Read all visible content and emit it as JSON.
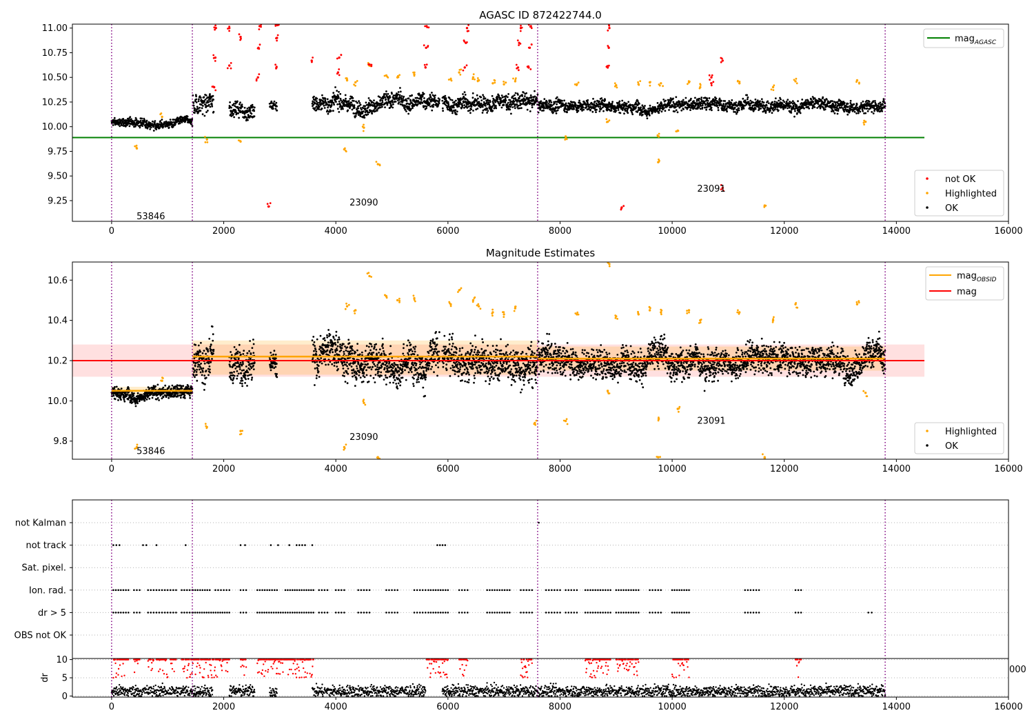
{
  "chart_data": [
    {
      "type": "scatter",
      "title": "AGASC ID 872422744.0",
      "xlabel": "",
      "ylabel": "",
      "xlim": [
        -700,
        16000
      ],
      "ylim": [
        9.04,
        11.04
      ],
      "x_ticks": [
        "0",
        "2000",
        "4000",
        "6000",
        "8000",
        "10000",
        "12000",
        "14000",
        "16000"
      ],
      "y_ticks": [
        "9.25",
        "9.50",
        "9.75",
        "10.00",
        "10.25",
        "10.50",
        "10.75",
        "11.00"
      ],
      "obsid_boundaries": [
        0,
        1440,
        7600,
        13800
      ],
      "obsid_labels": [
        {
          "text": "53846",
          "x": 700,
          "y": 9.09
        },
        {
          "text": "23090",
          "x": 4500,
          "y": 9.23
        },
        {
          "text": "23091",
          "x": 10700,
          "y": 9.37
        }
      ],
      "reference_line": {
        "name": "mag_AGASC",
        "value": 9.89,
        "x_range": [
          -700,
          14500
        ],
        "color": "#008000"
      },
      "series": [
        {
          "name": "not OK",
          "color": "#ff0000"
        },
        {
          "name": "Highlighted",
          "color": "#ffa500"
        },
        {
          "name": "OK",
          "color": "#000000"
        }
      ],
      "ok_segments": [
        {
          "x": [
            0,
            1440
          ],
          "center": 10.04,
          "spread": 0.04
        },
        {
          "x": [
            1450,
            1820
          ],
          "center": 10.23,
          "spread": 0.1
        },
        {
          "x": [
            2100,
            2550
          ],
          "center": 10.2,
          "spread": 0.09
        },
        {
          "x": [
            2820,
            2950
          ],
          "center": 10.21,
          "spread": 0.05
        },
        {
          "x": [
            3580,
            5850
          ],
          "center": 10.24,
          "spread": 0.08
        },
        {
          "x": [
            5900,
            7600
          ],
          "center": 10.24,
          "spread": 0.08
        },
        {
          "x": [
            7610,
            13800
          ],
          "center": 10.22,
          "spread": 0.06
        }
      ],
      "not_ok_points": [
        [
          1830,
          10.4
        ],
        [
          1850,
          10.7
        ],
        [
          1860,
          11.0
        ],
        [
          2100,
          10.62
        ],
        [
          2100,
          11.0
        ],
        [
          2300,
          10.91
        ],
        [
          2610,
          10.5
        ],
        [
          2620,
          10.8
        ],
        [
          2640,
          11.02
        ],
        [
          2800,
          9.19
        ],
        [
          2940,
          10.6
        ],
        [
          2950,
          10.9
        ],
        [
          2960,
          11.03
        ],
        [
          3570,
          10.67
        ],
        [
          4040,
          10.55
        ],
        [
          4060,
          10.7
        ],
        [
          4600,
          10.63
        ],
        [
          5600,
          10.6
        ],
        [
          5610,
          10.8
        ],
        [
          5620,
          11.02
        ],
        [
          6300,
          10.6
        ],
        [
          6320,
          10.85
        ],
        [
          6340,
          11.0
        ],
        [
          7250,
          10.6
        ],
        [
          7270,
          10.85
        ],
        [
          7300,
          11.0
        ],
        [
          7440,
          10.6
        ],
        [
          7460,
          10.8
        ],
        [
          7480,
          11.02
        ],
        [
          8850,
          10.6
        ],
        [
          8870,
          10.8
        ],
        [
          8880,
          11.0
        ],
        [
          9100,
          9.18
        ],
        [
          10700,
          10.5
        ],
        [
          10700,
          10.44
        ],
        [
          10900,
          10.67
        ],
        [
          10900,
          9.38
        ]
      ],
      "highlighted_points": [
        [
          450,
          9.78
        ],
        [
          900,
          10.1
        ],
        [
          1700,
          9.87
        ],
        [
          2300,
          9.85
        ],
        [
          4150,
          9.77
        ],
        [
          4200,
          10.47
        ],
        [
          4350,
          10.45
        ],
        [
          4500,
          9.99
        ],
        [
          4600,
          10.62
        ],
        [
          4750,
          9.62
        ],
        [
          4900,
          10.52
        ],
        [
          5100,
          10.5
        ],
        [
          5400,
          10.53
        ],
        [
          6050,
          10.48
        ],
        [
          6200,
          10.55
        ],
        [
          6450,
          10.5
        ],
        [
          6550,
          10.47
        ],
        [
          6800,
          10.44
        ],
        [
          7000,
          10.43
        ],
        [
          7200,
          10.46
        ],
        [
          8100,
          9.9
        ],
        [
          8300,
          10.43
        ],
        [
          8850,
          10.05
        ],
        [
          9000,
          10.42
        ],
        [
          9400,
          10.43
        ],
        [
          9600,
          10.45
        ],
        [
          9750,
          9.64
        ],
        [
          9760,
          9.9
        ],
        [
          9800,
          10.44
        ],
        [
          10100,
          9.96
        ],
        [
          10300,
          10.45
        ],
        [
          10500,
          10.4
        ],
        [
          11200,
          10.44
        ],
        [
          11650,
          9.2
        ],
        [
          11800,
          10.4
        ],
        [
          12200,
          10.46
        ],
        [
          13300,
          10.47
        ],
        [
          13450,
          10.05
        ]
      ]
    },
    {
      "type": "scatter",
      "title": "Magnitude Estimates",
      "xlabel": "",
      "ylabel": "",
      "xlim": [
        -700,
        16000
      ],
      "ylim": [
        9.71,
        10.69
      ],
      "x_ticks": [
        "0",
        "2000",
        "4000",
        "6000",
        "8000",
        "10000",
        "12000",
        "14000",
        "16000"
      ],
      "y_ticks": [
        "9.8",
        "10.0",
        "10.2",
        "10.4",
        "10.6"
      ],
      "obsid_labels": [
        {
          "text": "53846",
          "x": 700,
          "y": 9.75
        },
        {
          "text": "23090",
          "x": 4500,
          "y": 9.82
        },
        {
          "text": "23091",
          "x": 10700,
          "y": 9.9
        }
      ],
      "mag": {
        "name": "mag",
        "value": 10.2,
        "band": [
          10.12,
          10.28
        ],
        "x_range": [
          -700,
          14500
        ],
        "color": "#ff0000"
      },
      "mag_obsid": [
        {
          "x": [
            0,
            1440
          ],
          "value": 10.05,
          "band": [
            10.03,
            10.07
          ]
        },
        {
          "x": [
            1440,
            7600
          ],
          "value": 10.22,
          "band": [
            10.13,
            10.3
          ]
        },
        {
          "x": [
            7600,
            13800
          ],
          "value": 10.21,
          "band": [
            10.15,
            10.27
          ]
        }
      ],
      "mag_obsid_name": "mag_OBSID",
      "series": [
        {
          "name": "Highlighted",
          "color": "#ffa500"
        },
        {
          "name": "OK",
          "color": "#000000"
        }
      ],
      "ok_segments": [
        {
          "x": [
            0,
            1440
          ],
          "center": 10.04,
          "spread": 0.03
        },
        {
          "x": [
            1450,
            1820
          ],
          "center": 10.2,
          "spread": 0.1
        },
        {
          "x": [
            2100,
            2550
          ],
          "center": 10.2,
          "spread": 0.09
        },
        {
          "x": [
            2820,
            2950
          ],
          "center": 10.2,
          "spread": 0.06
        },
        {
          "x": [
            3580,
            5850
          ],
          "center": 10.22,
          "spread": 0.09
        },
        {
          "x": [
            5900,
            7600
          ],
          "center": 10.22,
          "spread": 0.09
        },
        {
          "x": [
            7610,
            13800
          ],
          "center": 10.21,
          "spread": 0.07
        }
      ],
      "highlighted_points": [
        [
          450,
          9.77
        ],
        [
          900,
          10.1
        ],
        [
          1700,
          9.87
        ],
        [
          2300,
          9.85
        ],
        [
          4150,
          9.77
        ],
        [
          4200,
          10.47
        ],
        [
          4350,
          10.45
        ],
        [
          4500,
          9.99
        ],
        [
          4600,
          10.62
        ],
        [
          4750,
          9.72
        ],
        [
          4900,
          10.52
        ],
        [
          5100,
          10.5
        ],
        [
          5400,
          10.51
        ],
        [
          6050,
          10.48
        ],
        [
          6200,
          10.55
        ],
        [
          6450,
          10.5
        ],
        [
          6550,
          10.47
        ],
        [
          6800,
          10.44
        ],
        [
          7000,
          10.43
        ],
        [
          7200,
          10.46
        ],
        [
          7550,
          9.89
        ],
        [
          8100,
          9.9
        ],
        [
          8300,
          10.43
        ],
        [
          8850,
          10.05
        ],
        [
          8880,
          10.68
        ],
        [
          9000,
          10.42
        ],
        [
          9400,
          10.43
        ],
        [
          9600,
          10.45
        ],
        [
          9750,
          9.72
        ],
        [
          9760,
          9.91
        ],
        [
          9800,
          10.44
        ],
        [
          10100,
          9.96
        ],
        [
          10300,
          10.45
        ],
        [
          10500,
          10.4
        ],
        [
          11200,
          10.44
        ],
        [
          11650,
          9.72
        ],
        [
          11800,
          10.4
        ],
        [
          12200,
          10.48
        ],
        [
          13300,
          10.48
        ],
        [
          13450,
          10.04
        ]
      ]
    },
    {
      "type": "scatter",
      "title": "",
      "xlabel": "",
      "ylabel": "",
      "xlim": [
        -700,
        16000
      ],
      "categories": [
        "not Kalman",
        "not track",
        "Sat. pixel.",
        "Ion. rad.",
        "dr > 5",
        "OBS not OK"
      ],
      "flag_ranges": {
        "not Kalman": [
          [
            7600,
            7640
          ]
        ],
        "not track": [
          [
            30,
            140
          ],
          [
            560,
            620
          ],
          [
            780,
            820
          ],
          [
            1300,
            1340
          ],
          [
            2300,
            2380
          ],
          [
            2820,
            2860
          ],
          [
            2950,
            2990
          ],
          [
            3150,
            3190
          ],
          [
            3300,
            3450
          ],
          [
            3560,
            3600
          ],
          [
            5810,
            5950
          ]
        ],
        "Sat. pixel.": [],
        "Ion. rad.": [
          [
            30,
            300
          ],
          [
            400,
            500
          ],
          [
            650,
            750
          ],
          [
            800,
            1000
          ],
          [
            1050,
            1150
          ],
          [
            1250,
            1440
          ],
          [
            1450,
            1750
          ],
          [
            1850,
            2100
          ],
          [
            2300,
            2400
          ],
          [
            2600,
            2950
          ],
          [
            3100,
            3600
          ],
          [
            3700,
            3850
          ],
          [
            4000,
            4150
          ],
          [
            4400,
            4600
          ],
          [
            4900,
            5100
          ],
          [
            5400,
            5600
          ],
          [
            5650,
            6000
          ],
          [
            6200,
            6350
          ],
          [
            6700,
            7100
          ],
          [
            7300,
            7500
          ],
          [
            7750,
            8000
          ],
          [
            8100,
            8300
          ],
          [
            8450,
            8900
          ],
          [
            9000,
            9400
          ],
          [
            9600,
            9800
          ],
          [
            10000,
            10300
          ],
          [
            11300,
            11550
          ],
          [
            12200,
            12300
          ]
        ],
        "dr > 5": [
          [
            30,
            300
          ],
          [
            400,
            500
          ],
          [
            650,
            750
          ],
          [
            800,
            1000
          ],
          [
            1050,
            1150
          ],
          [
            1250,
            1440
          ],
          [
            1450,
            2100
          ],
          [
            2300,
            2400
          ],
          [
            2600,
            3600
          ],
          [
            3700,
            3850
          ],
          [
            4000,
            4150
          ],
          [
            4400,
            4600
          ],
          [
            4900,
            5100
          ],
          [
            5400,
            5600
          ],
          [
            5650,
            6000
          ],
          [
            6200,
            6350
          ],
          [
            6700,
            7100
          ],
          [
            7300,
            7500
          ],
          [
            7750,
            8000
          ],
          [
            8100,
            8300
          ],
          [
            8450,
            8900
          ],
          [
            9000,
            9400
          ],
          [
            9600,
            9800
          ],
          [
            10000,
            10300
          ],
          [
            11300,
            11550
          ],
          [
            12200,
            12300
          ],
          [
            13500,
            13560
          ]
        ],
        "OBS not OK": []
      }
    },
    {
      "type": "scatter",
      "title": "",
      "xlabel": "",
      "ylabel": "dr",
      "xlim": [
        -700,
        16000
      ],
      "ylim": [
        -0.3,
        10.3
      ],
      "x_ticks": [
        "0",
        "2000",
        "4000",
        "6000",
        "8000",
        "10000",
        "12000",
        "14000",
        "16000"
      ],
      "y_ticks": [
        "0",
        "5",
        "10"
      ],
      "ok_segments": [
        [
          0,
          1440
        ],
        [
          1450,
          1800
        ],
        [
          2100,
          2550
        ],
        [
          2820,
          2950
        ],
        [
          3580,
          5600
        ],
        [
          5900,
          7600
        ],
        [
          7610,
          13800
        ]
      ],
      "not_ok_ranges": [
        [
          30,
          300
        ],
        [
          400,
          500
        ],
        [
          650,
          750
        ],
        [
          800,
          1000
        ],
        [
          1050,
          1150
        ],
        [
          1250,
          1440
        ],
        [
          1450,
          2100
        ],
        [
          2300,
          2400
        ],
        [
          2600,
          3600
        ],
        [
          5620,
          6000
        ],
        [
          6200,
          6350
        ],
        [
          7300,
          7500
        ],
        [
          8450,
          8900
        ],
        [
          9000,
          9400
        ],
        [
          10000,
          10300
        ],
        [
          12200,
          12300
        ]
      ],
      "clipped_tick_fragment": "000"
    }
  ]
}
